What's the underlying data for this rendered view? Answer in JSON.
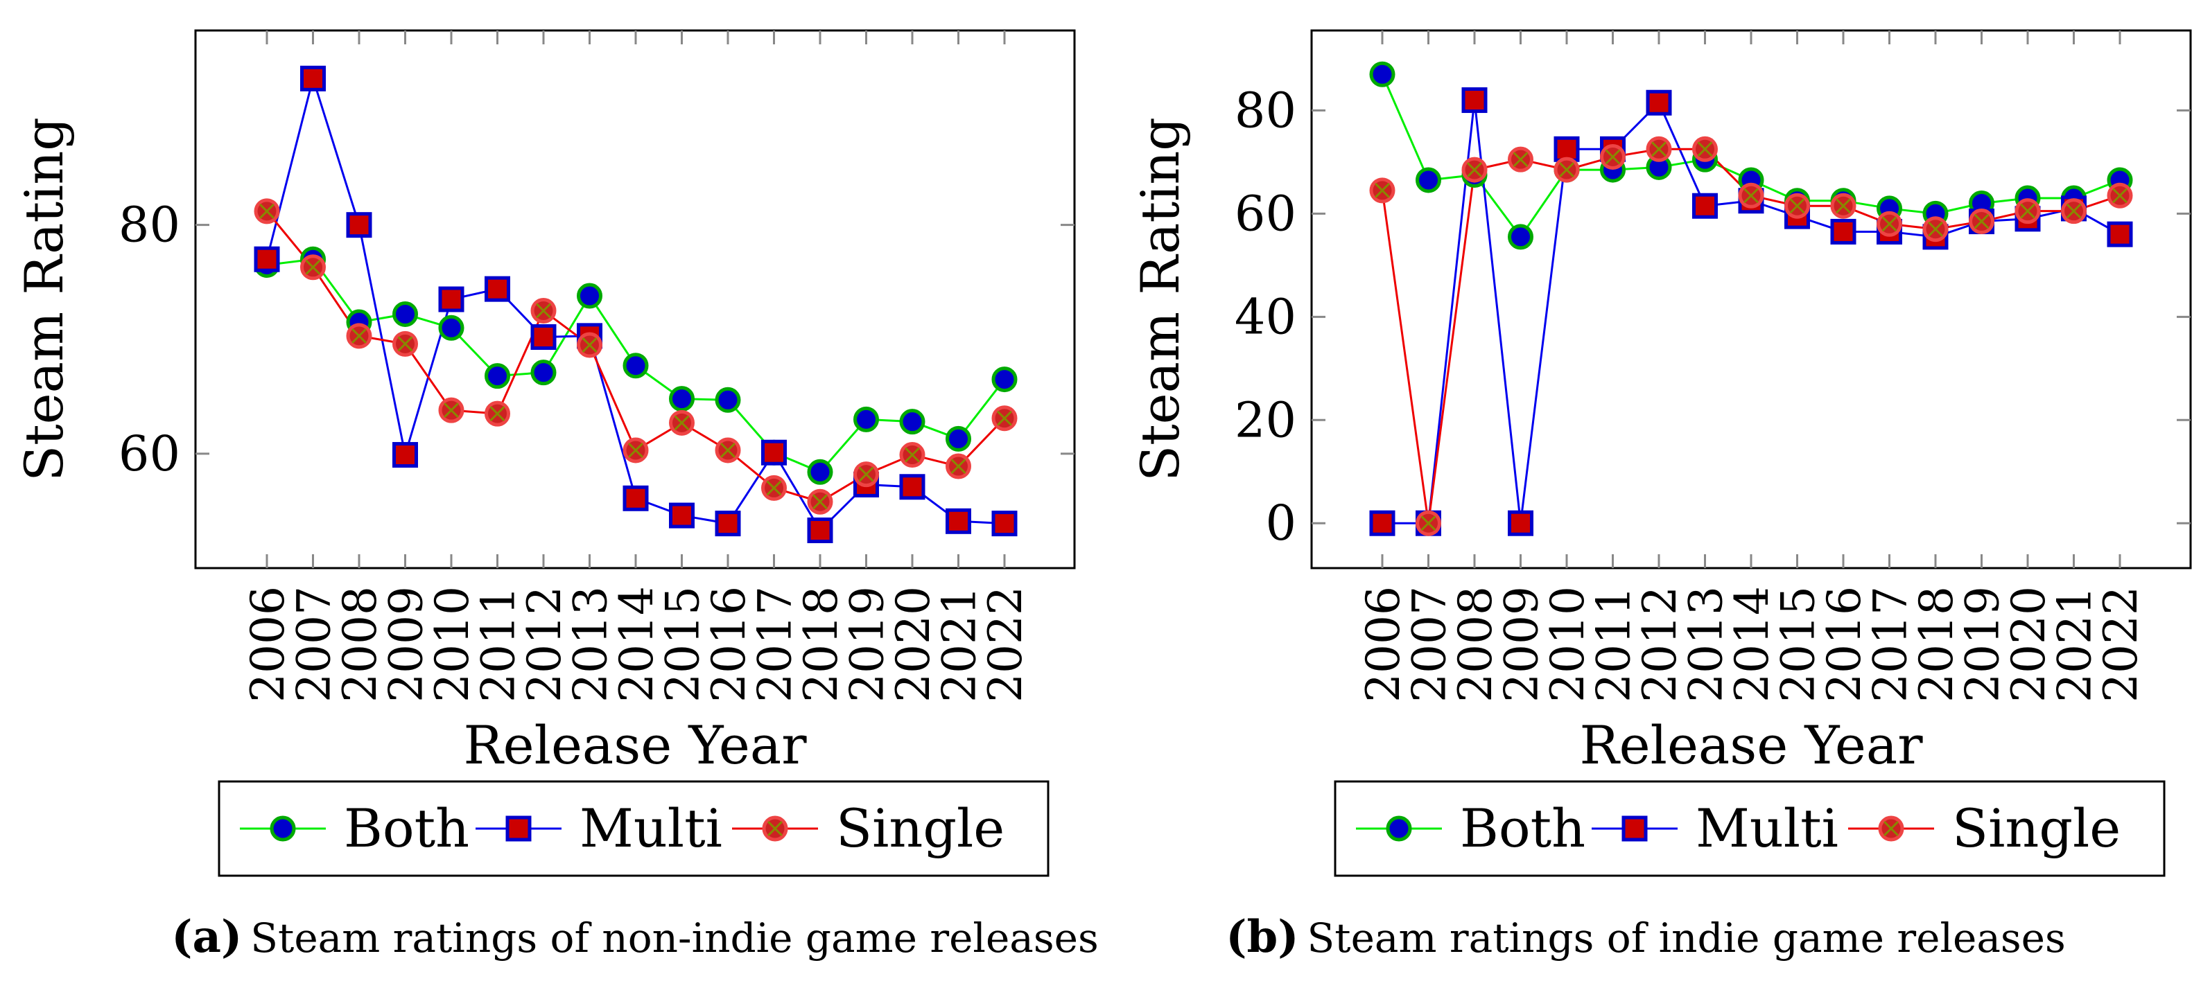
{
  "chart_data": [
    {
      "type": "line",
      "panel_label": "a",
      "caption": "Steam ratings of non-indie game releases",
      "xlabel": "Release Year",
      "ylabel": "Steam Rating",
      "ylim": [
        50,
        97
      ],
      "yticks": [
        60,
        80
      ],
      "categories": [
        "2006",
        "2007",
        "2008",
        "2009",
        "2010",
        "2011",
        "2012",
        "2013",
        "2014",
        "2015",
        "2016",
        "2017",
        "2018",
        "2019",
        "2020",
        "2021",
        "2022"
      ],
      "series": [
        {
          "name": "Both",
          "values": [
            76.5,
            77,
            71.5,
            72.2,
            71,
            66.8,
            67.1,
            73.8,
            67.7,
            64.8,
            64.7,
            60.1,
            58.4,
            63,
            62.8,
            61.3,
            66.5
          ]
        },
        {
          "name": "Multi",
          "values": [
            77,
            92.8,
            80,
            59.9,
            73.5,
            74.4,
            70.2,
            70.3,
            56.1,
            54.6,
            53.9,
            60.1,
            53.3,
            57.3,
            57.1,
            54.1,
            53.9
          ]
        },
        {
          "name": "Single",
          "values": [
            81.2,
            76.3,
            70.3,
            69.6,
            63.8,
            63.5,
            72.5,
            69.5,
            60.3,
            62.7,
            60.3,
            57,
            55.8,
            58.2,
            59.9,
            58.9,
            63.1
          ]
        }
      ],
      "legend": {
        "position": "bottom-center",
        "entries": [
          "Both",
          "Multi",
          "Single"
        ]
      }
    },
    {
      "type": "line",
      "panel_label": "b",
      "caption": "Steam ratings of indie game releases",
      "xlabel": "Release Year",
      "ylabel": "Steam Rating",
      "ylim": [
        -8.7,
        95.5
      ],
      "yticks": [
        0,
        20,
        40,
        60,
        80
      ],
      "categories": [
        "2006",
        "2007",
        "2008",
        "2009",
        "2010",
        "2011",
        "2012",
        "2013",
        "2014",
        "2015",
        "2016",
        "2017",
        "2018",
        "2019",
        "2020",
        "2021",
        "2022"
      ],
      "series": [
        {
          "name": "Both",
          "values": [
            87,
            66.5,
            67.5,
            55.5,
            68.5,
            68.5,
            69,
            70.5,
            66.5,
            62.5,
            62.5,
            61,
            60,
            62,
            63,
            63,
            66.5
          ]
        },
        {
          "name": "Multi",
          "values": [
            0,
            0,
            82,
            0,
            72.5,
            72.5,
            81.5,
            61.5,
            62.5,
            59.5,
            56.5,
            56.5,
            55.5,
            58.5,
            59,
            61,
            56
          ]
        },
        {
          "name": "Single",
          "values": [
            64.5,
            0,
            68.5,
            70.5,
            68.5,
            71,
            72.5,
            72.5,
            63.5,
            61.5,
            61.5,
            58,
            57,
            58.5,
            60.5,
            60.5,
            63.5
          ]
        }
      ],
      "legend": {
        "position": "bottom-center",
        "entries": [
          "Both",
          "Multi",
          "Single"
        ]
      }
    }
  ],
  "colors": {
    "Both": {
      "line": "#00ee00",
      "marker_fill": "#0000cc",
      "marker_stroke": "#00aa00"
    },
    "Multi": {
      "line": "#0000ee",
      "marker_fill": "#cc0000",
      "marker_stroke": "#0000cc"
    },
    "Single": {
      "line": "#ee0000",
      "marker_fill": "#cc2222",
      "marker_stroke": "#ee4444",
      "marker_cross": "#888800"
    }
  }
}
